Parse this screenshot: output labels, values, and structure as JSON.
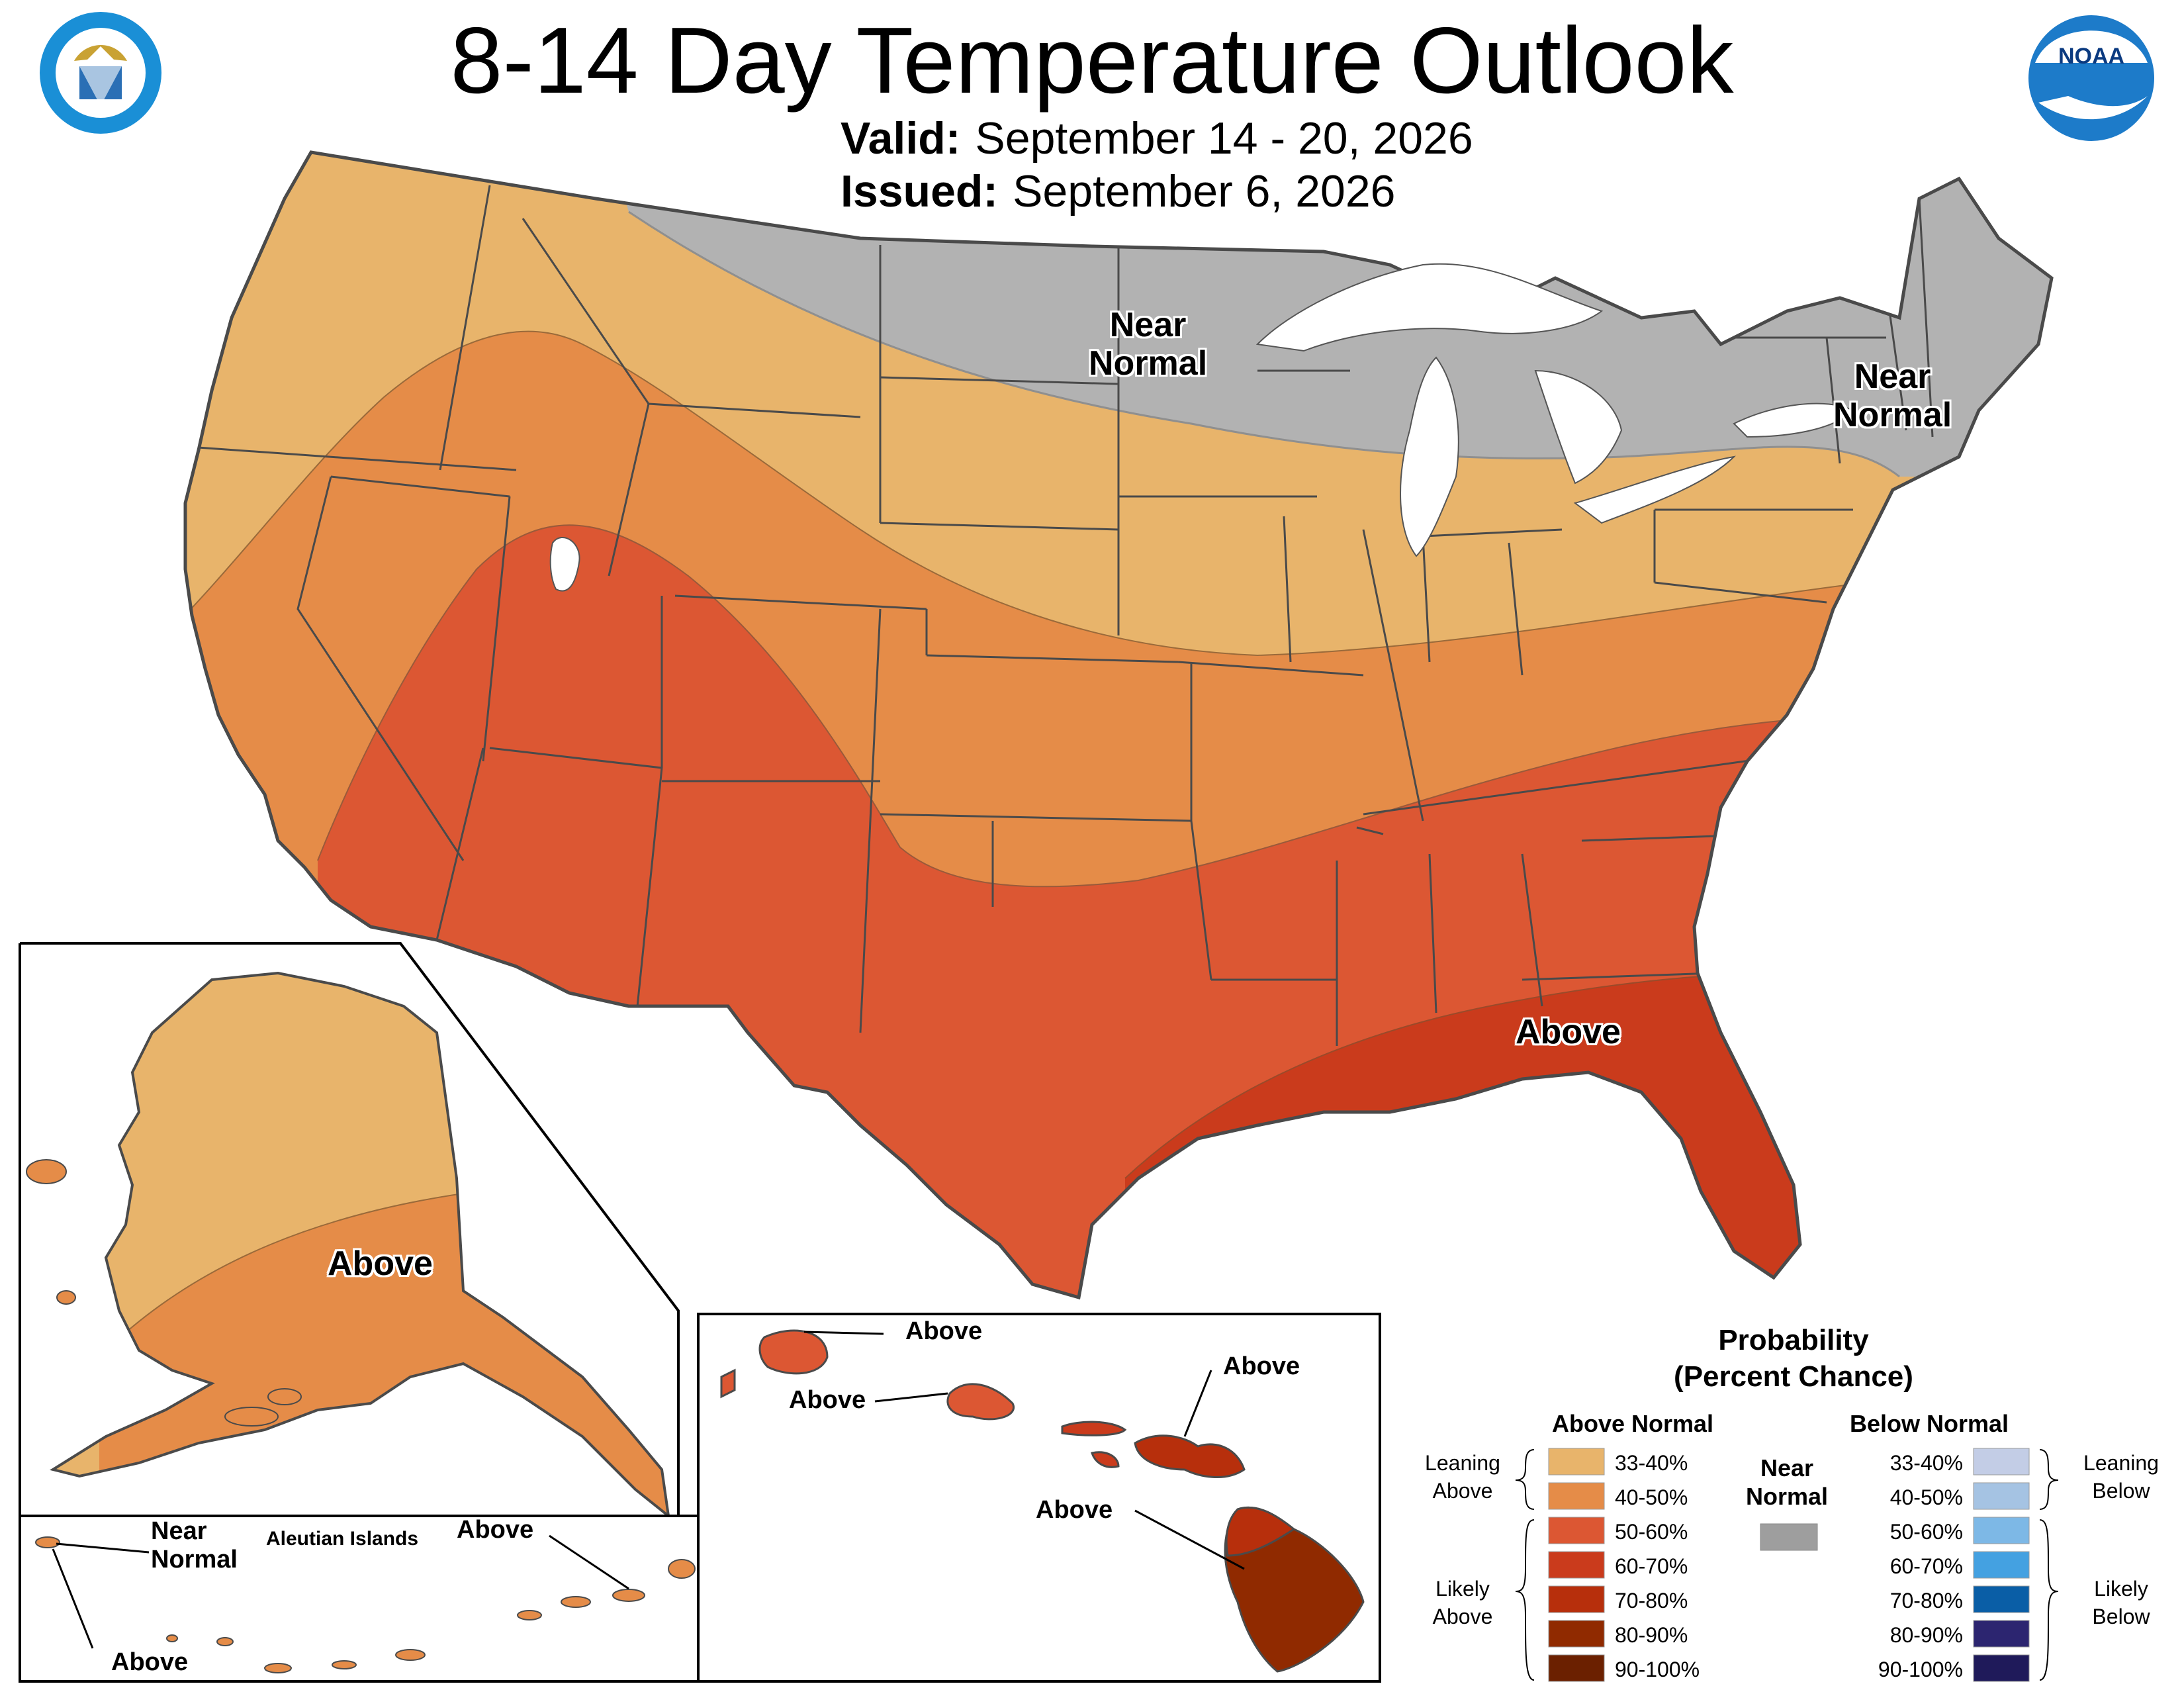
{
  "title": "8-14 Day Temperature Outlook",
  "valid": {
    "label": "Valid:",
    "value": "September 14 - 20, 2026"
  },
  "issued": {
    "label": "Issued:",
    "value": "September 6, 2026"
  },
  "colors": {
    "above_33_40": "#e8b46b",
    "above_40_50": "#e58c48",
    "above_50_60": "#dc5733",
    "above_60_70": "#ca3b1c",
    "above_70_80": "#b72f0c",
    "above_80_90": "#902a00",
    "above_90_100": "#6b2000",
    "near_normal": "#b2b2b2",
    "below_33_40": "#c3cde6",
    "below_40_50": "#a5c3e3",
    "below_50_60": "#7db8e6",
    "below_60_70": "#44a1e1",
    "below_70_80": "#0a5ea6",
    "below_80_90": "#2c2570",
    "below_90_100": "#1f1a5a",
    "border": "#4a4a4a",
    "water": "#ffffff"
  },
  "map_labels": {
    "conus_north": "Near\nNormal",
    "conus_northeast": "Near\nNormal",
    "conus_southeast": "Above",
    "alaska": "Above",
    "hawaii_kauai": "Above",
    "hawaii_oahu": "Above",
    "hawaii_maui": "Above",
    "hawaii_big_island": "Above",
    "aleutian_west_near": "Near\nNormal",
    "aleutian_west_above": "Above",
    "aleutian_east": "Above",
    "aleutian_title": "Aleutian Islands"
  },
  "legend": {
    "title": "Probability\n(Percent Chance)",
    "above_heading": "Above Normal",
    "below_heading": "Below Normal",
    "near_heading": "Near\nNormal",
    "leaning_above": "Leaning\nAbove",
    "likely_above": "Likely\nAbove",
    "leaning_below": "Leaning\nBelow",
    "likely_below": "Likely\nBelow",
    "above_rows": [
      "33-40%",
      "40-50%",
      "50-60%",
      "60-70%",
      "70-80%",
      "80-90%",
      "90-100%"
    ],
    "below_rows": [
      "33-40%",
      "40-50%",
      "50-60%",
      "60-70%",
      "70-80%",
      "80-90%",
      "90-100%"
    ]
  },
  "logos": {
    "left": "department-of-commerce-seal",
    "right": "noaa-logo",
    "noaa_text": "NOAA"
  }
}
